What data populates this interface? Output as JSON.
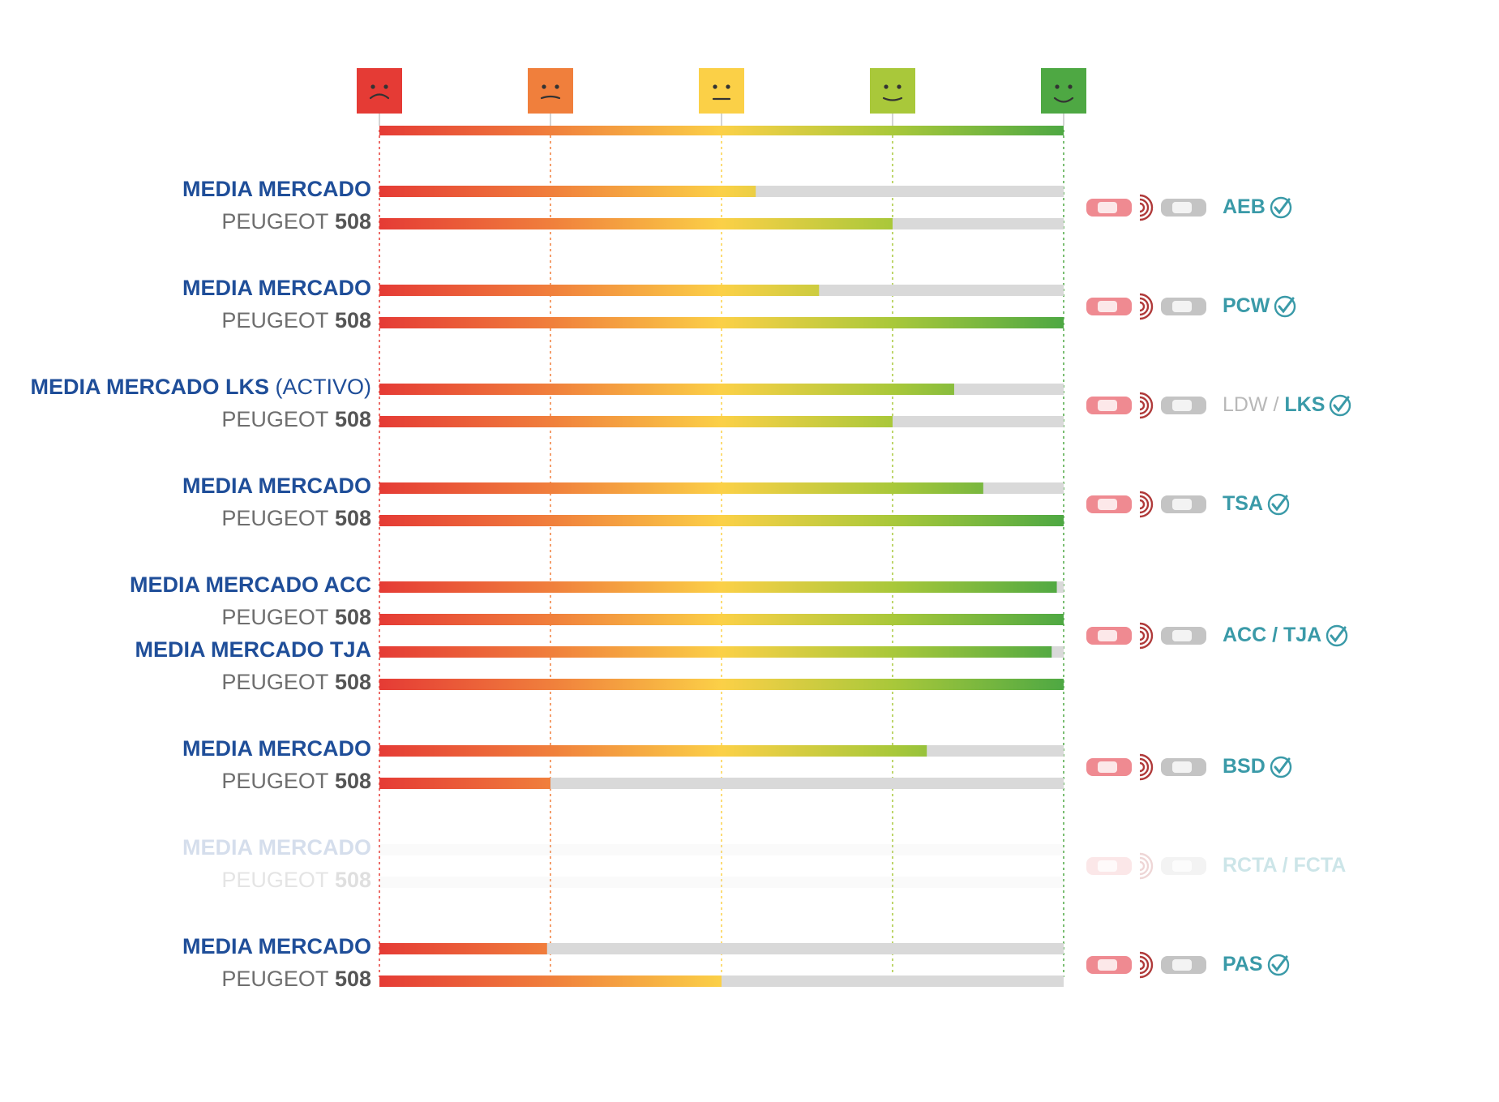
{
  "colors": {
    "scale": [
      "#e53b35",
      "#f07f3c",
      "#fbd047",
      "#a9c83a",
      "#4ea843"
    ],
    "track": "#d9d9d9",
    "market_text": "#1f4e99",
    "car_text": "#6e6e6e",
    "feature_text": "#3a9aa8",
    "icon_car": "#ef8a91",
    "icon_car_grey": "#c4c4c4"
  },
  "scale": {
    "faces": [
      "sad-face",
      "slightly-sad-face",
      "neutral-face",
      "slightly-happy-face",
      "happy-face"
    ],
    "max": 4
  },
  "chart_data": {
    "type": "bar",
    "orientation": "horizontal",
    "xlim": [
      0,
      4
    ],
    "groups": [
      {
        "feature": "AEB",
        "feature_prefix": "",
        "checked": true,
        "faded": false,
        "rows": [
          {
            "label": "MEDIA MERCADO",
            "label_suffix": "",
            "series": "market",
            "value": 2.2
          },
          {
            "label": "PEUGEOT",
            "label_suffix": "508",
            "series": "car",
            "value": 3.0
          }
        ]
      },
      {
        "feature": "PCW",
        "feature_prefix": "",
        "checked": true,
        "faded": false,
        "rows": [
          {
            "label": "MEDIA MERCADO",
            "label_suffix": "",
            "series": "market",
            "value": 2.57
          },
          {
            "label": "PEUGEOT",
            "label_suffix": "508",
            "series": "car",
            "value": 4.0
          }
        ]
      },
      {
        "feature": "LKS",
        "feature_prefix": "LDW / ",
        "checked": true,
        "faded": false,
        "rows": [
          {
            "label": "MEDIA MERCADO LKS",
            "label_suffix": "(ACTIVO)",
            "series": "market",
            "value": 3.36
          },
          {
            "label": "PEUGEOT",
            "label_suffix": "508",
            "series": "car",
            "value": 3.0
          }
        ]
      },
      {
        "feature": "TSA",
        "feature_prefix": "",
        "checked": true,
        "faded": false,
        "rows": [
          {
            "label": "MEDIA MERCADO",
            "label_suffix": "",
            "series": "market",
            "value": 3.53
          },
          {
            "label": "PEUGEOT",
            "label_suffix": "508",
            "series": "car",
            "value": 4.0
          }
        ]
      },
      {
        "feature": "ACC / TJA",
        "feature_prefix": "",
        "checked": true,
        "faded": false,
        "rows": [
          {
            "label": "MEDIA MERCADO ACC",
            "label_suffix": "",
            "series": "market",
            "value": 3.96
          },
          {
            "label": "PEUGEOT",
            "label_suffix": "508",
            "series": "car",
            "value": 4.0
          },
          {
            "label": "MEDIA MERCADO TJA",
            "label_suffix": "",
            "series": "market",
            "value": 3.93
          },
          {
            "label": "PEUGEOT",
            "label_suffix": "508",
            "series": "car",
            "value": 4.0
          }
        ]
      },
      {
        "feature": "BSD",
        "feature_prefix": "",
        "checked": true,
        "faded": false,
        "rows": [
          {
            "label": "MEDIA MERCADO",
            "label_suffix": "",
            "series": "market",
            "value": 3.2
          },
          {
            "label": "PEUGEOT",
            "label_suffix": "508",
            "series": "car",
            "value": 1.0
          }
        ]
      },
      {
        "feature": "RCTA / FCTA",
        "feature_prefix": "",
        "checked": false,
        "faded": true,
        "rows": [
          {
            "label": "MEDIA MERCADO",
            "label_suffix": "",
            "series": "market",
            "value": 0
          },
          {
            "label": "PEUGEOT",
            "label_suffix": "508",
            "series": "car",
            "value": 0
          }
        ]
      },
      {
        "feature": "PAS",
        "feature_prefix": "",
        "checked": true,
        "faded": false,
        "rows": [
          {
            "label": "MEDIA MERCADO",
            "label_suffix": "",
            "series": "market",
            "value": 0.98
          },
          {
            "label": "PEUGEOT",
            "label_suffix": "508",
            "series": "car",
            "value": 2.0
          }
        ]
      }
    ]
  }
}
